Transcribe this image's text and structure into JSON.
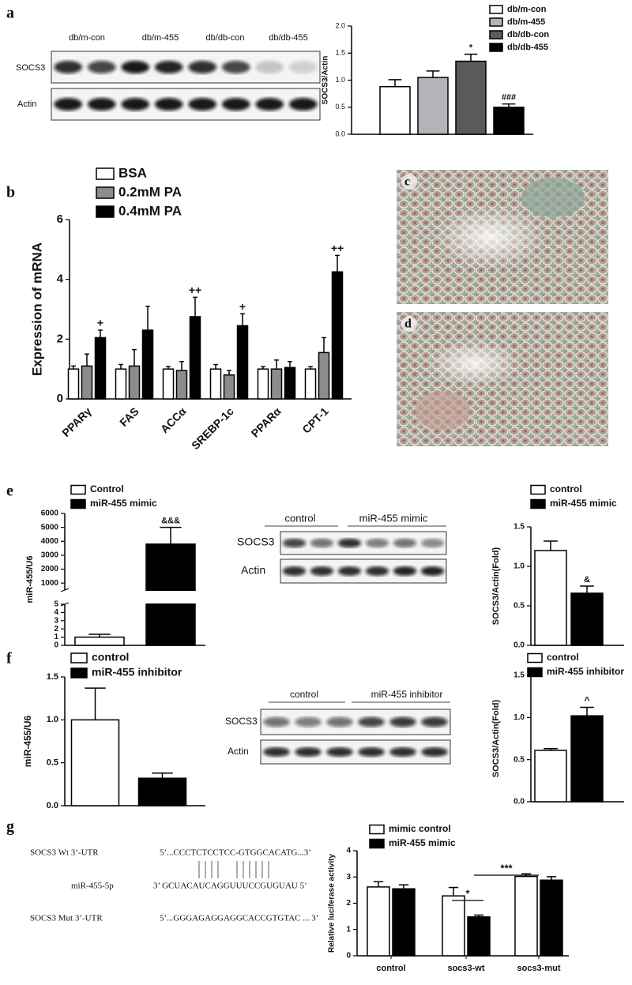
{
  "panel_labels": [
    "a",
    "b",
    "e",
    "f",
    "g"
  ],
  "images": [
    {
      "label": "c"
    },
    {
      "label": "d"
    }
  ],
  "blots": [
    {
      "lane_labels": [
        "db/m-con",
        "db/m-455",
        "db/db-con",
        "db/db-455"
      ],
      "rows": [
        "SOCS3",
        "Actin"
      ]
    },
    {
      "group_labels": [
        "control",
        "miR-455 mimic"
      ],
      "rows": [
        "SOCS3",
        "Actin"
      ]
    },
    {
      "group_labels": [
        "control",
        "miR-455 inhibitor"
      ],
      "rows": [
        "SOCS3",
        "Actin"
      ]
    }
  ],
  "sequence": {
    "rows": [
      {
        "name": "SOCS3 Wt 3’-UTR",
        "seq": "5’...CCCTCTCCTCC-GTGGCACATG...3’"
      },
      {
        "name": "miR-455-5p",
        "seq": "3’  GCUACAUCAGGUUUCCGUGUAU  5’"
      },
      {
        "name": "SOCS3 Mut 3’-UTR",
        "seq": "5’...GGGAGAGGAGGCACCGTGTAC ... 3’"
      }
    ]
  },
  "chart_data": [
    {
      "type": "bar",
      "ylabel": "SOCS3/Actin",
      "ylim": [
        0,
        2
      ],
      "yticks": [
        {
          "value": 0,
          "label": "0.0"
        },
        0.5,
        {
          "value": 1,
          "label": "1.0"
        },
        1.5,
        {
          "value": 2,
          "label": "2.0"
        }
      ],
      "series": [
        {
          "name": "db/m-con",
          "color": "#ffffff",
          "values": [
            0.88
          ],
          "errors": [
            0.13
          ]
        },
        {
          "name": "db/m-455",
          "color": "#b4b4b8",
          "values": [
            1.05
          ],
          "errors": [
            0.12
          ]
        },
        {
          "name": "db/db-con",
          "color": "#5a5a5a",
          "values": [
            1.35
          ],
          "errors": [
            0.13
          ],
          "annotations": [
            "*"
          ]
        },
        {
          "name": "db/db-455",
          "color": "#000000",
          "values": [
            0.5
          ],
          "errors": [
            0.06
          ],
          "annotations": [
            "###"
          ]
        }
      ]
    },
    {
      "type": "bar",
      "ylabel": "Expression of mRNA",
      "ylim": [
        0,
        6
      ],
      "yticks": [
        0,
        2,
        4,
        6
      ],
      "categories": [
        "PPARγ",
        "FAS",
        "ACCα",
        "SREBP-1c",
        "PPARα",
        "CPT-1"
      ],
      "series": [
        {
          "name": "BSA",
          "color": "#ffffff",
          "values": [
            1.0,
            1.0,
            1.0,
            1.0,
            1.0,
            1.0
          ],
          "errors": [
            0.1,
            0.15,
            0.08,
            0.15,
            0.08,
            0.08
          ]
        },
        {
          "name": "0.2mM PA",
          "color": "#8c8c8c",
          "values": [
            1.1,
            1.1,
            0.95,
            0.8,
            1.0,
            1.55
          ],
          "errors": [
            0.4,
            0.55,
            0.3,
            0.15,
            0.3,
            0.5
          ]
        },
        {
          "name": "0.4mM PA",
          "color": "#000000",
          "values": [
            2.05,
            2.3,
            2.75,
            2.45,
            1.05,
            4.25
          ],
          "errors": [
            0.25,
            0.8,
            0.65,
            0.4,
            0.2,
            0.55
          ],
          "annotations": [
            "+",
            null,
            "++",
            "+",
            null,
            "++"
          ]
        }
      ]
    },
    {
      "type": "bar",
      "ylabel": "miR-455/U6",
      "ylim": [
        0,
        6000
      ],
      "ybreak": [
        5,
        500
      ],
      "yticks": [
        0,
        1,
        2,
        3,
        4,
        5,
        1000,
        2000,
        3000,
        4000,
        5000,
        6000
      ],
      "series": [
        {
          "name": "Control",
          "color": "#ffffff",
          "values": [
            1.0
          ],
          "errors": [
            0.35
          ]
        },
        {
          "name": "miR-455 mimic",
          "color": "#000000",
          "values": [
            3800
          ],
          "errors": [
            1200
          ],
          "annotations": [
            "&&&"
          ]
        }
      ]
    },
    {
      "type": "bar",
      "ylabel": "SOCS3/Actin(Fold)",
      "ylim": [
        0,
        1.5
      ],
      "yticks": [
        {
          "value": 0,
          "label": "0.0"
        },
        0.5,
        {
          "value": 1,
          "label": "1.0"
        },
        1.5
      ],
      "series": [
        {
          "name": "control",
          "color": "#ffffff",
          "values": [
            1.2
          ],
          "errors": [
            0.12
          ]
        },
        {
          "name": "miR-455 mimic",
          "color": "#000000",
          "values": [
            0.66
          ],
          "errors": [
            0.09
          ],
          "annotations": [
            "&"
          ]
        }
      ]
    },
    {
      "type": "bar",
      "ylabel": "miR-455/U6",
      "ylim": [
        0,
        1.5
      ],
      "yticks": [
        {
          "value": 0,
          "label": "0.0"
        },
        0.5,
        {
          "value": 1,
          "label": "1.0"
        },
        1.5
      ],
      "series": [
        {
          "name": "control",
          "color": "#ffffff",
          "values": [
            1.0
          ],
          "errors": [
            0.37
          ]
        },
        {
          "name": "miR-455 inhibitor",
          "color": "#000000",
          "values": [
            0.32
          ],
          "errors": [
            0.06
          ]
        }
      ]
    },
    {
      "type": "bar",
      "ylabel": "SOCS3/Actin(Fold)",
      "ylim": [
        0,
        1.5
      ],
      "yticks": [
        {
          "value": 0,
          "label": "0.0"
        },
        0.5,
        {
          "value": 1,
          "label": "1.0"
        },
        1.5
      ],
      "series": [
        {
          "name": "control",
          "color": "#ffffff",
          "values": [
            0.61
          ],
          "errors": [
            0.02
          ]
        },
        {
          "name": "miR-455 inhibitor",
          "color": "#000000",
          "values": [
            1.02
          ],
          "errors": [
            0.1
          ],
          "annotations": [
            "^"
          ]
        }
      ]
    },
    {
      "type": "bar",
      "ylabel": "Relative luciferase activity",
      "ylim": [
        0,
        4
      ],
      "yticks": [
        0,
        1,
        2,
        3,
        4
      ],
      "categories": [
        "control",
        "socs3-wt",
        "socs3-mut"
      ],
      "brackets": [
        {
          "label": "*"
        },
        {
          "label": "***"
        }
      ],
      "series": [
        {
          "name": "mimic control",
          "color": "#ffffff",
          "values": [
            2.62,
            2.28,
            3.02
          ],
          "errors": [
            0.2,
            0.32,
            0.1
          ]
        },
        {
          "name": "miR-455 mimic",
          "color": "#000000",
          "values": [
            2.55,
            1.48,
            2.88
          ],
          "errors": [
            0.15,
            0.07,
            0.13
          ]
        }
      ]
    }
  ]
}
